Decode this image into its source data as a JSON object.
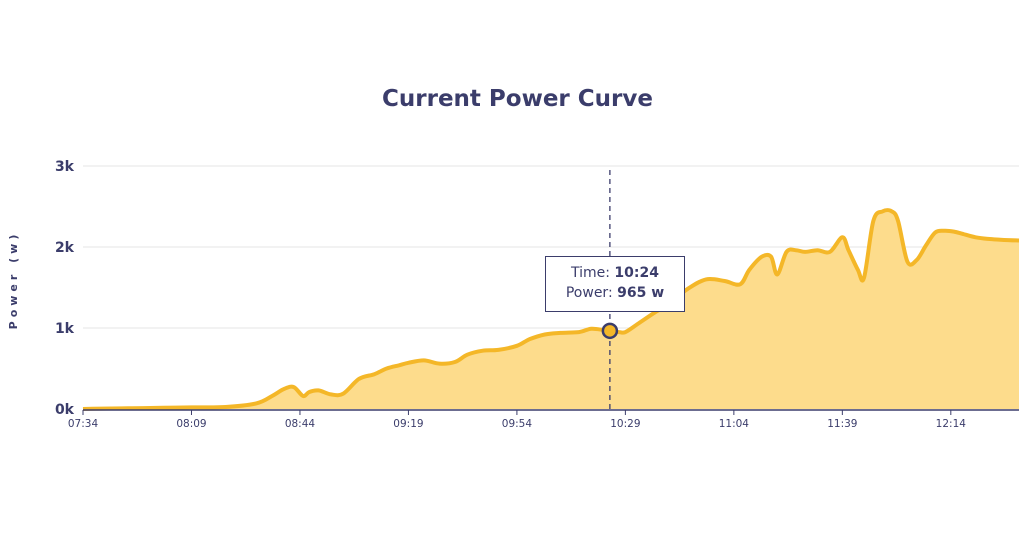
{
  "chart_data": {
    "type": "area",
    "title": "Current Power Curve",
    "ylabel": "Power (w)",
    "xlabel": "",
    "x_ticks": [
      "07:34",
      "08:09",
      "08:44",
      "09:19",
      "09:54",
      "10:29",
      "11:04",
      "11:39",
      "12:14"
    ],
    "y_ticks": [
      "0k",
      "1k",
      "2k",
      "3k"
    ],
    "ylim": [
      0,
      3000
    ],
    "xlim": [
      "07:34",
      "12:36"
    ],
    "grid": "horizontal",
    "colors": {
      "fill": "#fddc8c",
      "line": "#f4b728",
      "axis": "#3b3d6b"
    },
    "series": [
      {
        "x": [
          "07:34",
          "07:40",
          "07:50",
          "08:00",
          "08:09",
          "08:20",
          "08:30",
          "08:35",
          "08:39",
          "08:42",
          "08:45",
          "08:47",
          "08:50",
          "08:54",
          "08:58",
          "09:03",
          "09:08",
          "09:12",
          "09:16",
          "09:19",
          "09:24",
          "09:29",
          "09:34",
          "09:38",
          "09:43",
          "09:48",
          "09:54",
          "09:58",
          "10:03",
          "10:08",
          "10:14",
          "10:18",
          "10:22",
          "10:24",
          "10:27",
          "10:29",
          "10:33",
          "10:38",
          "10:43",
          "10:49",
          "10:55",
          "11:01",
          "11:06",
          "11:09",
          "11:13",
          "11:16",
          "11:18",
          "11:21",
          "11:24",
          "11:27",
          "11:31",
          "11:35",
          "11:39",
          "11:41",
          "11:44",
          "11:46",
          "11:49",
          "11:52",
          "11:55",
          "11:57",
          "12:00",
          "12:03",
          "12:06",
          "12:09",
          "12:12",
          "12:15",
          "12:18",
          "12:22",
          "12:26",
          "12:30",
          "12:36"
        ],
        "values": [
          0,
          5,
          10,
          15,
          20,
          25,
          70,
          160,
          250,
          270,
          160,
          210,
          230,
          180,
          190,
          370,
          430,
          500,
          540,
          570,
          600,
          560,
          580,
          670,
          720,
          730,
          780,
          860,
          920,
          940,
          950,
          990,
          975,
          965,
          950,
          950,
          1050,
          1180,
          1300,
          1480,
          1600,
          1580,
          1540,
          1720,
          1880,
          1880,
          1660,
          1940,
          1960,
          1940,
          1960,
          1940,
          2120,
          1960,
          1720,
          1620,
          2320,
          2440,
          2440,
          2320,
          1820,
          1840,
          2020,
          2180,
          2200,
          2190,
          2160,
          2120,
          2100,
          2090,
          2080
        ]
      }
    ],
    "highlight": {
      "time": "10:24",
      "power": 965,
      "time_label": "Time:",
      "power_label": "Power:",
      "time_value": "10:24",
      "power_value": "965 w"
    }
  }
}
